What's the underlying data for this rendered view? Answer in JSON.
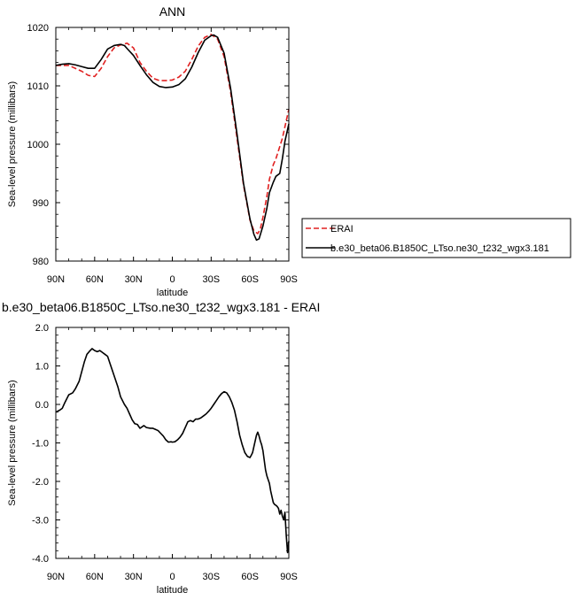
{
  "chart_data": [
    {
      "type": "line",
      "title": "ANN",
      "xlabel": "latitude",
      "ylabel": "Sea-level pressure (millibars)",
      "xlim": [
        -90,
        90
      ],
      "ylim": [
        980,
        1020
      ],
      "x_ticks": [
        -90,
        -60,
        -30,
        0,
        30,
        60,
        90
      ],
      "x_tick_labels": [
        "90N",
        "60N",
        "30N",
        "0",
        "30S",
        "60S",
        "90S"
      ],
      "y_ticks": [
        980,
        990,
        1000,
        1010,
        1020
      ],
      "y_tick_labels": [
        "980",
        "990",
        "1000",
        "1010",
        "1020"
      ],
      "legend_position": "right",
      "series": [
        {
          "name": "ERAI",
          "color": "#e02020",
          "dash": "dashed",
          "x": [
            -90,
            -80,
            -70,
            -65,
            -60,
            -55,
            -50,
            -45,
            -40,
            -35,
            -30,
            -25,
            -20,
            -15,
            -10,
            -5,
            0,
            5,
            10,
            15,
            20,
            25,
            30,
            35,
            40,
            45,
            50,
            55,
            60,
            63,
            66,
            68,
            70,
            73,
            75,
            78,
            80,
            85,
            90
          ],
          "values": [
            1013.5,
            1013.5,
            1012.5,
            1011.8,
            1011.6,
            1013.0,
            1015.0,
            1016.5,
            1017.0,
            1017.3,
            1016.5,
            1014.0,
            1012.5,
            1011.3,
            1010.9,
            1010.9,
            1011.0,
            1011.5,
            1012.5,
            1014.5,
            1016.8,
            1018.3,
            1018.8,
            1018.0,
            1015.0,
            1009.0,
            1001.0,
            993.0,
            987.0,
            985.2,
            984.7,
            985.5,
            987.5,
            991.0,
            994.0,
            996.5,
            997.5,
            1001.0,
            1006.0
          ]
        },
        {
          "name": "b.e30_beta06.B1850C_LTso.ne30_t232_wgx3.181",
          "color": "#000000",
          "dash": "solid",
          "x": [
            -90,
            -85,
            -80,
            -75,
            -70,
            -65,
            -60,
            -55,
            -50,
            -45,
            -40,
            -37,
            -35,
            -30,
            -25,
            -20,
            -15,
            -10,
            -5,
            0,
            5,
            10,
            15,
            20,
            25,
            30,
            32,
            35,
            40,
            45,
            50,
            55,
            60,
            63,
            65,
            67,
            70,
            73,
            75,
            78,
            80,
            83,
            85,
            87,
            90
          ],
          "values": [
            1013.5,
            1013.7,
            1013.8,
            1013.6,
            1013.3,
            1013.0,
            1013.0,
            1014.5,
            1016.3,
            1016.9,
            1017.1,
            1016.9,
            1016.4,
            1015.2,
            1013.5,
            1011.9,
            1010.6,
            1009.9,
            1009.7,
            1009.8,
            1010.2,
            1011.2,
            1013.2,
            1015.7,
            1017.8,
            1018.6,
            1018.7,
            1018.3,
            1015.6,
            1009.6,
            1001.7,
            993.3,
            987.2,
            984.6,
            983.6,
            983.8,
            986.0,
            989.0,
            991.7,
            993.5,
            994.5,
            995.0,
            997.5,
            1000.5,
            1003.5
          ]
        }
      ]
    },
    {
      "type": "line",
      "title": "b.e30_beta06.B1850C_LTso.ne30_t232_wgx3.181 - ERAI",
      "xlabel": "latitude",
      "ylabel": "Sea-level pressure (millibars)",
      "xlim": [
        -90,
        90
      ],
      "ylim": [
        -4.0,
        2.0
      ],
      "x_ticks": [
        -90,
        -60,
        -30,
        0,
        30,
        60,
        90
      ],
      "x_tick_labels": [
        "90N",
        "60N",
        "30N",
        "0",
        "30S",
        "60S",
        "90S"
      ],
      "y_ticks": [
        -4.0,
        -3.0,
        -2.0,
        -1.0,
        0.0,
        1.0,
        2.0
      ],
      "y_tick_labels": [
        "-4.0",
        "-3.0",
        "-2.0",
        "-1.0",
        "0.0",
        "1.0",
        "2.0"
      ],
      "series": [
        {
          "color": "#000000",
          "dash": "solid",
          "x": [
            -90,
            -87,
            -85,
            -83,
            -80,
            -77,
            -75,
            -72,
            -70,
            -68,
            -66,
            -64,
            -62,
            -60,
            -58,
            -56,
            -54,
            -52,
            -50,
            -48,
            -45,
            -42,
            -40,
            -37,
            -35,
            -33,
            -31,
            -29,
            -27,
            -25,
            -22,
            -20,
            -17,
            -15,
            -13,
            -11,
            -9,
            -7,
            -5,
            -3,
            -1,
            0,
            2,
            4,
            6,
            8,
            10,
            12,
            14,
            16,
            18,
            20,
            22,
            24,
            26,
            28,
            30,
            32,
            34,
            36,
            38,
            40,
            42,
            44,
            46,
            48,
            50,
            52,
            54,
            56,
            58,
            60,
            61,
            62,
            63,
            64,
            65,
            66,
            67,
            68,
            69,
            70,
            71,
            72,
            73,
            74,
            75,
            76,
            77,
            78,
            79,
            80,
            81,
            82,
            83,
            84,
            85,
            86,
            87,
            88,
            89,
            90
          ],
          "values": [
            -0.2,
            -0.15,
            -0.1,
            0.05,
            0.25,
            0.3,
            0.4,
            0.6,
            0.85,
            1.1,
            1.3,
            1.38,
            1.45,
            1.4,
            1.37,
            1.4,
            1.35,
            1.3,
            1.25,
            1.05,
            0.75,
            0.45,
            0.2,
            0.0,
            -0.1,
            -0.25,
            -0.4,
            -0.5,
            -0.52,
            -0.62,
            -0.55,
            -0.6,
            -0.62,
            -0.62,
            -0.65,
            -0.68,
            -0.75,
            -0.82,
            -0.92,
            -0.98,
            -0.97,
            -0.98,
            -0.97,
            -0.92,
            -0.85,
            -0.75,
            -0.6,
            -0.45,
            -0.42,
            -0.45,
            -0.38,
            -0.38,
            -0.35,
            -0.3,
            -0.25,
            -0.18,
            -0.1,
            0.0,
            0.1,
            0.2,
            0.28,
            0.33,
            0.3,
            0.2,
            0.05,
            -0.15,
            -0.45,
            -0.8,
            -1.05,
            -1.25,
            -1.35,
            -1.38,
            -1.32,
            -1.25,
            -1.1,
            -0.95,
            -0.8,
            -0.72,
            -0.82,
            -0.95,
            -1.05,
            -1.2,
            -1.45,
            -1.7,
            -1.85,
            -1.95,
            -2.05,
            -2.25,
            -2.4,
            -2.55,
            -2.6,
            -2.62,
            -2.65,
            -2.7,
            -2.85,
            -2.75,
            -2.9,
            -3.0,
            -2.8,
            -3.4,
            -3.85,
            -3.55
          ]
        }
      ]
    }
  ]
}
